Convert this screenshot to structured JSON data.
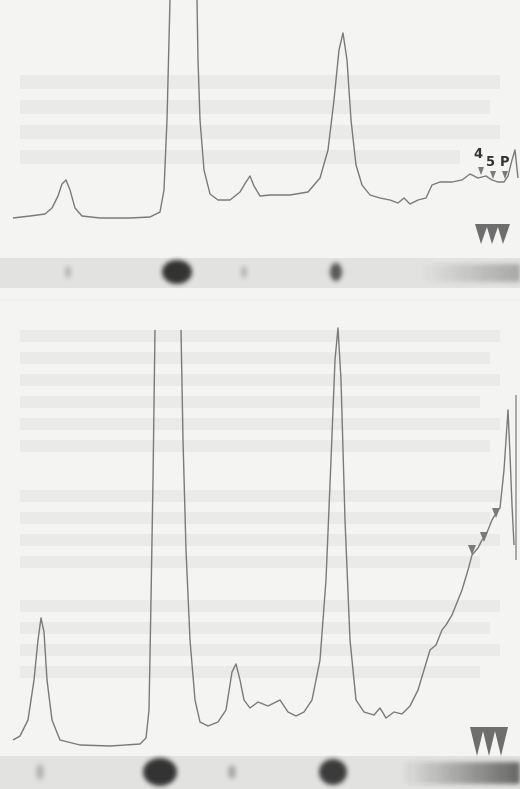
{
  "figure": {
    "top_panel": {
      "peak_labels": [
        "4",
        "5",
        "P"
      ]
    },
    "bottom_panel": {
      "peak_labels": []
    },
    "colors": {
      "background": "#f4f4f2",
      "trace": "#7a7a7a",
      "arrowhead": "#6e6e6e",
      "gel_band": "#2a2a2a",
      "gel_strip": "#e2e2e0"
    },
    "icons": [
      "arrowhead-icon"
    ]
  }
}
